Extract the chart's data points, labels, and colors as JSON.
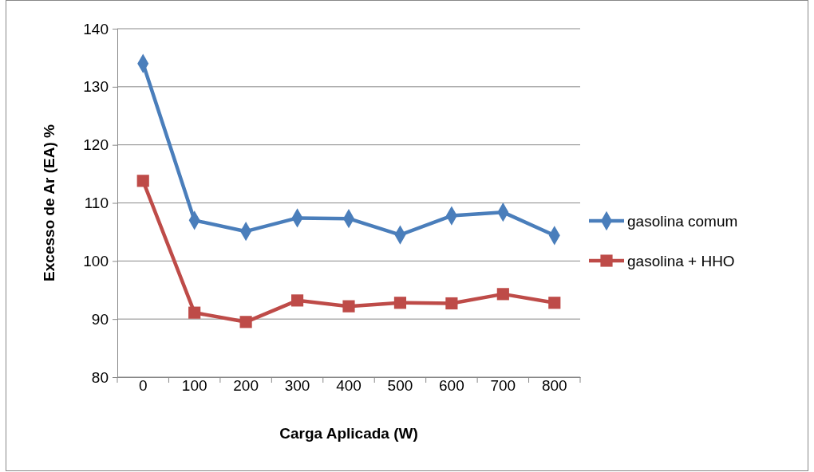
{
  "chart_data": {
    "type": "line",
    "xlabel": "Carga Aplicada (W)",
    "ylabel": "Excesso de Ar (EA) %",
    "categories": [
      "0",
      "100",
      "200",
      "300",
      "400",
      "500",
      "600",
      "700",
      "800"
    ],
    "ylim": [
      80,
      140
    ],
    "yticks": [
      80,
      90,
      100,
      110,
      120,
      130,
      140
    ],
    "grid": "y",
    "legend": "right",
    "series": [
      {
        "name": "gasolina comum",
        "color": "#4a7ebb",
        "marker": "diamond",
        "values": [
          134,
          107,
          105.1,
          107.4,
          107.3,
          104.5,
          107.8,
          108.4,
          104.4
        ]
      },
      {
        "name": "gasolina + HHO",
        "color": "#be4b48",
        "marker": "square",
        "values": [
          113.8,
          91.1,
          89.5,
          93.2,
          92.2,
          92.8,
          92.7,
          94.3,
          92.8
        ]
      }
    ]
  }
}
